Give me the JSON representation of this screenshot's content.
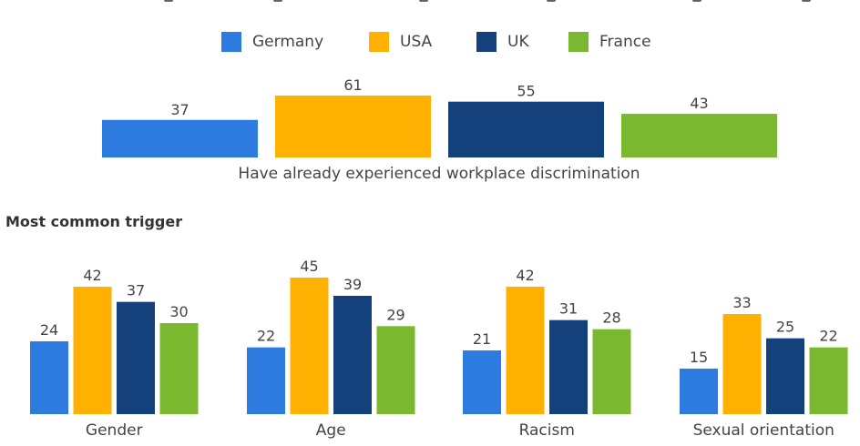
{
  "colors": {
    "Germany": "#2e7be0",
    "USA": "#ffb000",
    "UK": "#14407c",
    "France": "#7ab82f"
  },
  "legend": [
    "Germany",
    "USA",
    "UK",
    "France"
  ],
  "chart_data": [
    {
      "type": "bar",
      "categories": [
        "Have already experienced workplace discrimination"
      ],
      "series": [
        {
          "name": "Germany",
          "values": [
            37
          ]
        },
        {
          "name": "USA",
          "values": [
            61
          ]
        },
        {
          "name": "UK",
          "values": [
            55
          ]
        },
        {
          "name": "France",
          "values": [
            43
          ]
        }
      ],
      "xlabel": "",
      "ylabel": "",
      "ylim": [
        0,
        70
      ]
    },
    {
      "type": "bar",
      "title": "Most common trigger",
      "categories": [
        "Gender",
        "Age",
        "Racism",
        "Sexual orientation"
      ],
      "series": [
        {
          "name": "Germany",
          "values": [
            24,
            22,
            21,
            15
          ]
        },
        {
          "name": "USA",
          "values": [
            42,
            45,
            42,
            33
          ]
        },
        {
          "name": "UK",
          "values": [
            37,
            39,
            31,
            25
          ]
        },
        {
          "name": "France",
          "values": [
            30,
            29,
            28,
            22
          ]
        }
      ],
      "xlabel": "",
      "ylabel": "",
      "ylim": [
        0,
        50
      ]
    }
  ]
}
